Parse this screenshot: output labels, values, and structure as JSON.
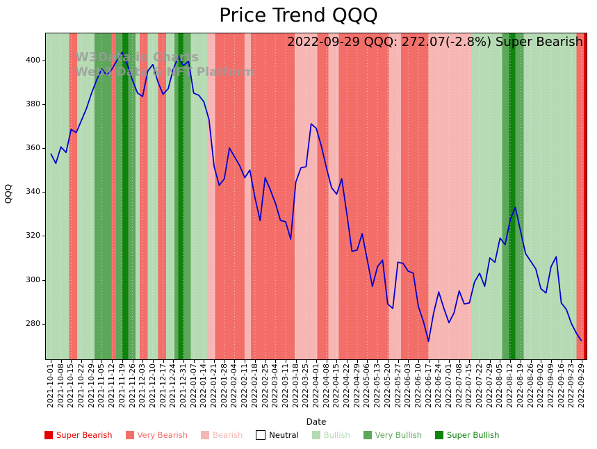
{
  "title": "Price Trend QQQ",
  "annotation": "2022-09-29 QQQ: 272.07(-2.8%) Super Bearish",
  "watermark": {
    "line1": "W3Data.io Charts",
    "line2": "Web3 Data & NFT Platform"
  },
  "legend": {
    "items": [
      {
        "label": "Super Bearish",
        "sentiment": "super_bearish"
      },
      {
        "label": "Very Bearish",
        "sentiment": "very_bearish"
      },
      {
        "label": "Bearish",
        "sentiment": "bearish"
      },
      {
        "label": "Neutral",
        "sentiment": "neutral"
      },
      {
        "label": "Bullish",
        "sentiment": "bullish"
      },
      {
        "label": "Very Bullish",
        "sentiment": "very_bullish"
      },
      {
        "label": "Super Bullish",
        "sentiment": "super_bullish"
      }
    ]
  },
  "chart_data": {
    "type": "line",
    "title": "Price Trend QQQ",
    "xlabel": "Date",
    "ylabel": "QQQ",
    "ylim": [
      263.5,
      412.5
    ],
    "yticks": [
      280,
      300,
      320,
      340,
      360,
      380,
      400
    ],
    "grid": "white dashed vertical lines at weekly ticks",
    "legend_position": "bottom",
    "annotation": "2022-09-29 QQQ: 272.07(-2.8%) Super Bearish",
    "last_point": {
      "date": "2022-09-29",
      "price": 272.07,
      "change_pct": -2.8,
      "signal": "Super Bearish"
    },
    "categories": [
      "2021-10-01",
      "2021-10-08",
      "2021-10-15",
      "2021-10-22",
      "2021-10-29",
      "2021-11-05",
      "2021-11-12",
      "2021-11-19",
      "2021-11-26",
      "2021-12-03",
      "2021-12-10",
      "2021-12-17",
      "2021-12-24",
      "2021-12-31",
      "2022-01-07",
      "2022-01-14",
      "2022-01-21",
      "2022-01-28",
      "2022-02-04",
      "2022-02-11",
      "2022-02-18",
      "2022-02-25",
      "2022-03-04",
      "2022-03-11",
      "2022-03-18",
      "2022-03-25",
      "2022-04-01",
      "2022-04-08",
      "2022-04-15",
      "2022-04-22",
      "2022-04-29",
      "2022-05-06",
      "2022-05-13",
      "2022-05-20",
      "2022-05-27",
      "2022-06-03",
      "2022-06-10",
      "2022-06-17",
      "2022-06-24",
      "2022-07-01",
      "2022-07-08",
      "2022-07-15",
      "2022-07-22",
      "2022-07-29",
      "2022-08-05",
      "2022-08-12",
      "2022-08-19",
      "2022-08-26",
      "2022-09-02",
      "2022-09-09",
      "2022-09-16",
      "2022-09-23",
      "2022-09-29"
    ],
    "samples_per_category": 2,
    "series": [
      {
        "name": "QQQ",
        "color": "#0000cd",
        "values": [
          357.5,
          353,
          360.5,
          358,
          368.5,
          367,
          372.5,
          378,
          385,
          391,
          396,
          393,
          396,
          400,
          403.5,
          398,
          391,
          385,
          383.5,
          395,
          398,
          390,
          384.5,
          387,
          396,
          401.5,
          397.5,
          399.5,
          385,
          384,
          381,
          373,
          351.5,
          343,
          346,
          360,
          356,
          352,
          346.5,
          350,
          337.5,
          327,
          346.5,
          341,
          335,
          327,
          326.5,
          318.5,
          344.5,
          351,
          351.5,
          371,
          369,
          361,
          351,
          342,
          339,
          346,
          330,
          313,
          313.5,
          321,
          309,
          297,
          306,
          309,
          289,
          287,
          308,
          307.5,
          304,
          303,
          288,
          281,
          272,
          285,
          294.5,
          287,
          280.5,
          285,
          295,
          289,
          289.5,
          299,
          303,
          297,
          310,
          308,
          319,
          316,
          327.5,
          333,
          322.5,
          312,
          308.5,
          305,
          296,
          294,
          306,
          310.5,
          289.5,
          286.5,
          280,
          275.5,
          272.07
        ]
      }
    ],
    "sentiment_colors": {
      "super_bearish": "#e50000",
      "very_bearish": "#f46e69",
      "bearish": "#f6b6b4",
      "neutral": "#ffffff",
      "bullish": "#b6dbb4",
      "very_bullish": "#5da75b",
      "super_bullish": "#0e830e"
    },
    "bands": [
      {
        "start_week": 0,
        "end_week": 1.8,
        "sentiment": "bullish"
      },
      {
        "start_week": 1.8,
        "end_week": 2.6,
        "sentiment": "very_bearish"
      },
      {
        "start_week": 2.6,
        "end_week": 4.3,
        "sentiment": "bullish"
      },
      {
        "start_week": 4.3,
        "end_week": 6.0,
        "sentiment": "very_bullish"
      },
      {
        "start_week": 6.0,
        "end_week": 6.4,
        "sentiment": "very_bearish"
      },
      {
        "start_week": 6.4,
        "end_week": 7.0,
        "sentiment": "very_bullish"
      },
      {
        "start_week": 7.0,
        "end_week": 7.6,
        "sentiment": "super_bullish"
      },
      {
        "start_week": 7.6,
        "end_week": 8.3,
        "sentiment": "very_bullish"
      },
      {
        "start_week": 8.3,
        "end_week": 8.7,
        "sentiment": "bullish"
      },
      {
        "start_week": 8.7,
        "end_week": 9.5,
        "sentiment": "very_bearish"
      },
      {
        "start_week": 9.5,
        "end_week": 10.5,
        "sentiment": "bullish"
      },
      {
        "start_week": 10.5,
        "end_week": 11.3,
        "sentiment": "very_bearish"
      },
      {
        "start_week": 11.3,
        "end_week": 12.1,
        "sentiment": "bullish"
      },
      {
        "start_week": 12.1,
        "end_week": 12.5,
        "sentiment": "very_bullish"
      },
      {
        "start_week": 12.5,
        "end_week": 13.0,
        "sentiment": "super_bullish"
      },
      {
        "start_week": 13.0,
        "end_week": 13.7,
        "sentiment": "very_bullish"
      },
      {
        "start_week": 13.7,
        "end_week": 15.3,
        "sentiment": "bullish"
      },
      {
        "start_week": 15.3,
        "end_week": 16.1,
        "sentiment": "bearish"
      },
      {
        "start_week": 16.1,
        "end_week": 19.0,
        "sentiment": "very_bearish"
      },
      {
        "start_week": 19.0,
        "end_week": 19.6,
        "sentiment": "bearish"
      },
      {
        "start_week": 19.6,
        "end_week": 23.9,
        "sentiment": "very_bearish"
      },
      {
        "start_week": 23.9,
        "end_week": 26.1,
        "sentiment": "bearish"
      },
      {
        "start_week": 26.1,
        "end_week": 27.2,
        "sentiment": "very_bearish"
      },
      {
        "start_week": 27.2,
        "end_week": 28.2,
        "sentiment": "bearish"
      },
      {
        "start_week": 28.2,
        "end_week": 33.1,
        "sentiment": "very_bearish"
      },
      {
        "start_week": 33.1,
        "end_week": 34.3,
        "sentiment": "bearish"
      },
      {
        "start_week": 34.3,
        "end_week": 37.0,
        "sentiment": "very_bearish"
      },
      {
        "start_week": 37.0,
        "end_week": 41.2,
        "sentiment": "bearish"
      },
      {
        "start_week": 41.2,
        "end_week": 44.2,
        "sentiment": "bullish"
      },
      {
        "start_week": 44.2,
        "end_week": 44.9,
        "sentiment": "very_bullish"
      },
      {
        "start_week": 44.9,
        "end_week": 45.5,
        "sentiment": "super_bullish"
      },
      {
        "start_week": 45.5,
        "end_week": 46.3,
        "sentiment": "very_bullish"
      },
      {
        "start_week": 46.3,
        "end_week": 51.5,
        "sentiment": "bullish"
      },
      {
        "start_week": 51.5,
        "end_week": 52.2,
        "sentiment": "very_bearish"
      },
      {
        "start_week": 52.2,
        "end_week": 53.0,
        "sentiment": "super_bearish"
      }
    ]
  }
}
